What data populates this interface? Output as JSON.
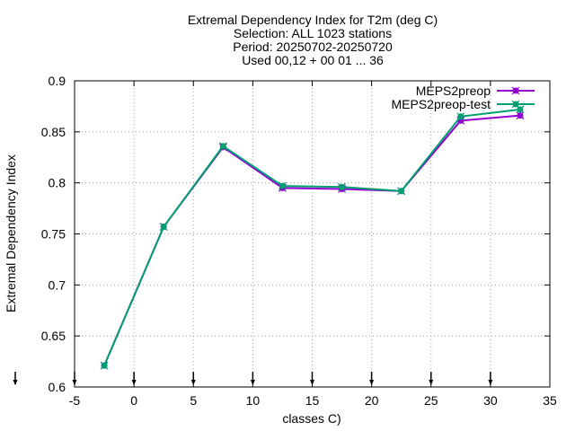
{
  "chart_data": {
    "type": "line",
    "title_lines": [
      "Extremal Dependency Index  for T2m (deg C)",
      "Selection: ALL    1023 stations",
      "Period: 20250702-20250720",
      "Used 00,12 + 00 01 ... 36"
    ],
    "xlabel": "classes C)",
    "ylabel": "Extremal Dependency Index",
    "xlim": [
      -5,
      35
    ],
    "ylim": [
      0.6,
      0.9
    ],
    "xticks": [
      -5,
      0,
      5,
      10,
      15,
      20,
      25,
      30,
      35
    ],
    "xtick_labels": [
      "-5",
      "0",
      "5",
      "10",
      "15",
      "20",
      "25",
      "30",
      "35"
    ],
    "yticks": [
      0.6,
      0.65,
      0.7,
      0.75,
      0.8,
      0.85,
      0.9
    ],
    "ytick_labels": [
      "0.6",
      "0.65",
      "0.7",
      "0.75",
      "0.8",
      "0.85",
      "0.9"
    ],
    "grid": true,
    "legend_position": "top-right",
    "series": [
      {
        "name": "MEPS2preop",
        "color": "#9400d3",
        "x": [
          -2.5,
          2.5,
          7.5,
          12.5,
          17.5,
          22.5,
          27.5,
          32.5
        ],
        "y": [
          0.621,
          0.757,
          0.835,
          0.795,
          0.794,
          0.792,
          0.861,
          0.866
        ]
      },
      {
        "name": "MEPS2preop-test",
        "color": "#009e73",
        "x": [
          -2.5,
          2.5,
          7.5,
          12.5,
          17.5,
          22.5,
          27.5,
          32.5
        ],
        "y": [
          0.621,
          0.757,
          0.836,
          0.797,
          0.796,
          0.792,
          0.865,
          0.872
        ]
      }
    ],
    "arrow_markers_x": [
      -5,
      0,
      5,
      10,
      15,
      20,
      25,
      30
    ],
    "arrow_marker_outside_x": -10
  }
}
